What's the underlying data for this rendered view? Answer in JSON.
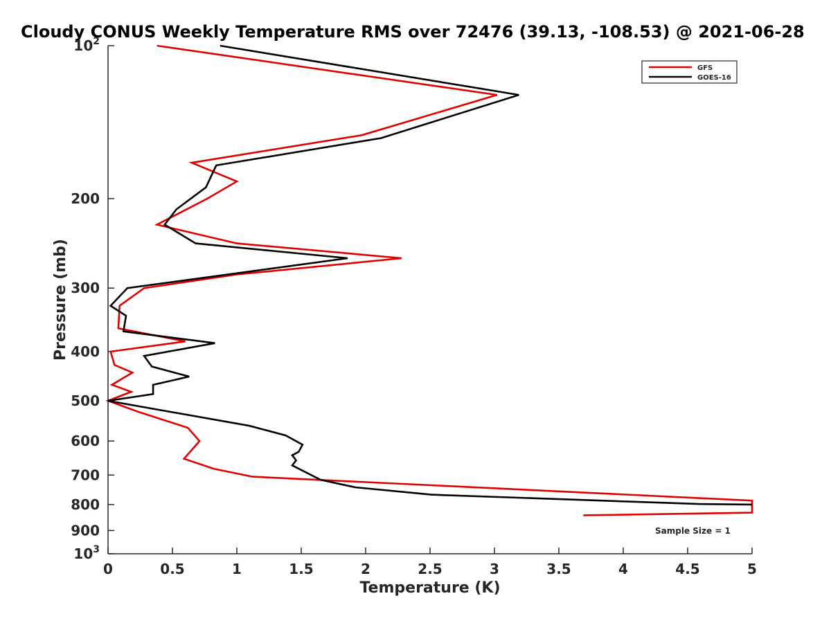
{
  "chart_data": {
    "type": "line",
    "title": "Cloudy CONUS Weekly Temperature RMS over 72476 (39.13, -108.53) @ 2021-06-28",
    "xlabel": "Temperature (K)",
    "ylabel": "Pressure (mb)",
    "xlim": [
      0,
      5
    ],
    "ylim": [
      100,
      1000
    ],
    "y_scale": "log",
    "y_direction": "reversed",
    "grid": false,
    "legend_placement": "top-right",
    "x_ticks": [
      "0",
      "0.5",
      "1",
      "1.5",
      "2",
      "2.5",
      "3",
      "3.5",
      "4",
      "4.5",
      "5"
    ],
    "y_ticks": [
      {
        "value": 100,
        "base": "10",
        "exp": "2"
      },
      {
        "value": 200,
        "label": "200"
      },
      {
        "value": 300,
        "label": "300"
      },
      {
        "value": 400,
        "label": "400"
      },
      {
        "value": 500,
        "label": "500"
      },
      {
        "value": 600,
        "label": "600"
      },
      {
        "value": 700,
        "label": "700"
      },
      {
        "value": 800,
        "label": "800"
      },
      {
        "value": 900,
        "label": "900"
      },
      {
        "value": 1000,
        "base": "10",
        "exp": "3"
      }
    ],
    "series": [
      {
        "name": "GFS",
        "color": "#e00000",
        "points": [
          [
            0.38,
            100
          ],
          [
            3.02,
            125
          ],
          [
            1.97,
            150
          ],
          [
            0.65,
            170
          ],
          [
            1.0,
            185
          ],
          [
            0.77,
            200
          ],
          [
            0.38,
            225
          ],
          [
            1.0,
            245
          ],
          [
            2.28,
            262
          ],
          [
            1.0,
            282
          ],
          [
            0.28,
            300
          ],
          [
            0.09,
            325
          ],
          [
            0.08,
            360
          ],
          [
            0.6,
            382
          ],
          [
            0.02,
            400
          ],
          [
            0.05,
            425
          ],
          [
            0.19,
            440
          ],
          [
            0.03,
            465
          ],
          [
            0.18,
            480
          ],
          [
            0.0,
            500
          ],
          [
            0.23,
            525
          ],
          [
            0.62,
            565
          ],
          [
            0.71,
            600
          ],
          [
            0.59,
            650
          ],
          [
            0.82,
            680
          ],
          [
            1.12,
            705
          ],
          [
            5.0,
            786
          ],
          [
            5.0,
            830
          ],
          [
            3.69,
            840
          ]
        ]
      },
      {
        "name": "GOES-16",
        "color": "#000000",
        "points": [
          [
            0.87,
            100
          ],
          [
            3.19,
            125
          ],
          [
            2.12,
            152
          ],
          [
            0.84,
            172
          ],
          [
            0.76,
            190
          ],
          [
            0.53,
            210
          ],
          [
            0.44,
            225
          ],
          [
            0.68,
            245
          ],
          [
            1.86,
            262
          ],
          [
            0.15,
            300
          ],
          [
            0.02,
            325
          ],
          [
            0.14,
            340
          ],
          [
            0.12,
            365
          ],
          [
            0.83,
            385
          ],
          [
            0.28,
            408
          ],
          [
            0.34,
            428
          ],
          [
            0.63,
            448
          ],
          [
            0.35,
            465
          ],
          [
            0.35,
            485
          ],
          [
            0.0,
            500
          ],
          [
            1.1,
            560
          ],
          [
            1.38,
            585
          ],
          [
            1.51,
            610
          ],
          [
            1.48,
            630
          ],
          [
            1.43,
            640
          ],
          [
            1.46,
            655
          ],
          [
            1.43,
            670
          ],
          [
            1.65,
            715
          ],
          [
            1.92,
            740
          ],
          [
            2.51,
            765
          ],
          [
            4.59,
            798
          ],
          [
            5.0,
            800
          ]
        ]
      }
    ],
    "annotation": "Sample Size = 1"
  }
}
